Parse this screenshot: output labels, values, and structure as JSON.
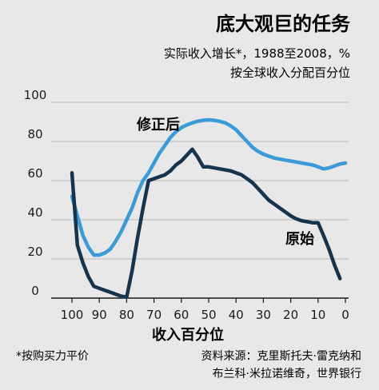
{
  "chart_data": {
    "type": "line",
    "title": "底大观巨的任务",
    "subtitle_line1": "实际收入增长*，1988至2008，%",
    "subtitle_line2": "按全球收入分配百分位",
    "xlabel": "收入百分位",
    "ylabel": "",
    "x_ticks": [
      "100",
      "90",
      "80",
      "70",
      "60",
      "50",
      "40",
      "30",
      "20",
      "10",
      "0"
    ],
    "y_ticks": [
      "0",
      "20",
      "40",
      "60",
      "80",
      "100"
    ],
    "xlim": [
      100,
      0
    ],
    "ylim": [
      0,
      100
    ],
    "x_reversed": true,
    "grid": "horizontal",
    "series": [
      {
        "name": "修正后",
        "color": "#3c9ad6",
        "points": [
          [
            100,
            52
          ],
          [
            98,
            42
          ],
          [
            96,
            32
          ],
          [
            94,
            26
          ],
          [
            92,
            22
          ],
          [
            90,
            22
          ],
          [
            88,
            23
          ],
          [
            86,
            25
          ],
          [
            84,
            29
          ],
          [
            82,
            34
          ],
          [
            80,
            40
          ],
          [
            78,
            46
          ],
          [
            76,
            54
          ],
          [
            74,
            60
          ],
          [
            72,
            64
          ],
          [
            70,
            69
          ],
          [
            68,
            74
          ],
          [
            66,
            78
          ],
          [
            64,
            82
          ],
          [
            62,
            85
          ],
          [
            60,
            87
          ],
          [
            58,
            88.5
          ],
          [
            56,
            89.5
          ],
          [
            54,
            90.3
          ],
          [
            52,
            90.8
          ],
          [
            50,
            91
          ],
          [
            48,
            90.8
          ],
          [
            46,
            90.3
          ],
          [
            44,
            89.5
          ],
          [
            42,
            88
          ],
          [
            40,
            86
          ],
          [
            38,
            83
          ],
          [
            36,
            80
          ],
          [
            34,
            77
          ],
          [
            32,
            75
          ],
          [
            30,
            73.5
          ],
          [
            28,
            72.5
          ],
          [
            26,
            71.5
          ],
          [
            24,
            71
          ],
          [
            22,
            70.5
          ],
          [
            20,
            70
          ],
          [
            18,
            69.5
          ],
          [
            16,
            69
          ],
          [
            14,
            68.5
          ],
          [
            12,
            68
          ],
          [
            10,
            67
          ],
          [
            8,
            66
          ],
          [
            6,
            66.5
          ],
          [
            4,
            67.5
          ],
          [
            2,
            68.5
          ],
          [
            0,
            69
          ]
        ]
      },
      {
        "name": "原始",
        "color": "#17344f",
        "points": [
          [
            100,
            64
          ],
          [
            98,
            27
          ],
          [
            96,
            18
          ],
          [
            94,
            11
          ],
          [
            92,
            6
          ],
          [
            90,
            5
          ],
          [
            88,
            4
          ],
          [
            86,
            3
          ],
          [
            84,
            2
          ],
          [
            82,
            1
          ],
          [
            80,
            0.5
          ],
          [
            78,
            14
          ],
          [
            76,
            31
          ],
          [
            74,
            46
          ],
          [
            72,
            60
          ],
          [
            70,
            61
          ],
          [
            68,
            62
          ],
          [
            66,
            63
          ],
          [
            64,
            65
          ],
          [
            62,
            68
          ],
          [
            60,
            70
          ],
          [
            58,
            73
          ],
          [
            56,
            76
          ],
          [
            54,
            72
          ],
          [
            52,
            67
          ],
          [
            50,
            67
          ],
          [
            48,
            66.5
          ],
          [
            46,
            66
          ],
          [
            44,
            65.5
          ],
          [
            42,
            65
          ],
          [
            40,
            64
          ],
          [
            38,
            63
          ],
          [
            36,
            61
          ],
          [
            34,
            59
          ],
          [
            32,
            56
          ],
          [
            30,
            53
          ],
          [
            28,
            50
          ],
          [
            26,
            48
          ],
          [
            24,
            46
          ],
          [
            22,
            44
          ],
          [
            20,
            42
          ],
          [
            18,
            40.5
          ],
          [
            16,
            39.5
          ],
          [
            14,
            39
          ],
          [
            12,
            38.5
          ],
          [
            10,
            38.5
          ],
          [
            8,
            32
          ],
          [
            6,
            25
          ],
          [
            4,
            17
          ],
          [
            2,
            10
          ]
        ]
      }
    ],
    "notes_left": "*按购买力平价",
    "source_line1": "资料来源：克里斯托夫·雷克纳和",
    "source_line2": "布兰科·米拉诺维奇，世界银行"
  }
}
